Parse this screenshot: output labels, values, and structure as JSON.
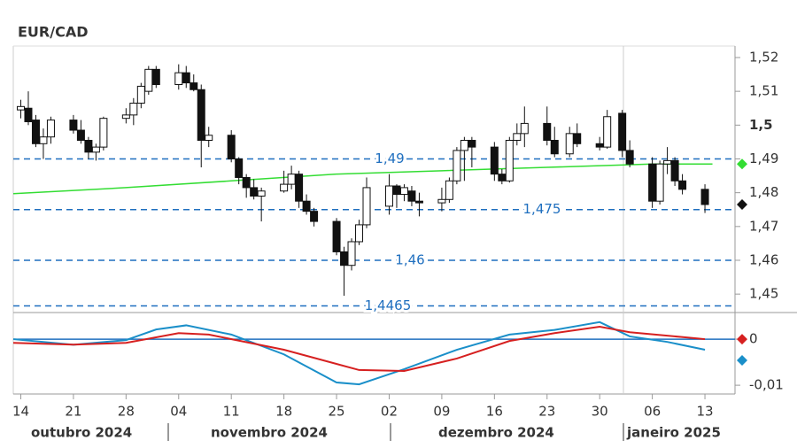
{
  "chart_data": [
    {
      "type": "candlestick",
      "title": "EUR/CAD",
      "x": [
        "2024-10-14",
        "2024-10-15",
        "2024-10-16",
        "2024-10-17",
        "2024-10-18",
        "2024-10-21",
        "2024-10-22",
        "2024-10-23",
        "2024-10-24",
        "2024-10-25",
        "2024-10-28",
        "2024-10-29",
        "2024-10-30",
        "2024-10-31",
        "2024-11-01",
        "2024-11-04",
        "2024-11-05",
        "2024-11-06",
        "2024-11-07",
        "2024-11-08",
        "2024-11-11",
        "2024-11-12",
        "2024-11-13",
        "2024-11-14",
        "2024-11-15",
        "2024-11-18",
        "2024-11-19",
        "2024-11-20",
        "2024-11-21",
        "2024-11-22",
        "2024-11-25",
        "2024-11-26",
        "2024-11-27",
        "2024-11-28",
        "2024-11-29",
        "2024-12-02",
        "2024-12-03",
        "2024-12-04",
        "2024-12-05",
        "2024-12-06",
        "2024-12-09",
        "2024-12-10",
        "2024-12-11",
        "2024-12-12",
        "2024-12-13",
        "2024-12-16",
        "2024-12-17",
        "2024-12-18",
        "2024-12-19",
        "2024-12-20",
        "2024-12-23",
        "2024-12-24",
        "2024-12-26",
        "2024-12-27",
        "2024-12-30",
        "2024-12-31",
        "2025-01-02",
        "2025-01-03",
        "2025-01-06",
        "2025-01-07",
        "2025-01-08",
        "2025-01-09",
        "2025-01-10",
        "2025-01-13"
      ],
      "open": [
        1.5045,
        1.505,
        1.5015,
        1.4945,
        1.4965,
        1.5015,
        1.4985,
        1.4955,
        1.492,
        1.4935,
        1.502,
        1.503,
        1.5065,
        1.51,
        1.5165,
        1.512,
        1.5155,
        1.5125,
        1.5105,
        1.4955,
        1.497,
        1.49,
        1.4845,
        1.4815,
        1.479,
        1.4805,
        1.4825,
        1.4855,
        1.4775,
        1.4745,
        1.4715,
        1.4625,
        1.4585,
        1.4655,
        1.4705,
        1.476,
        1.482,
        1.4795,
        1.4805,
        1.4775,
        1.477,
        1.478,
        1.4835,
        1.4925,
        1.4955,
        1.4935,
        1.4855,
        1.4835,
        1.4955,
        1.4975,
        1.5005,
        1.4955,
        1.4915,
        1.4975,
        1.4945,
        1.4935,
        1.5035,
        1.4925,
        1.4885,
        1.4775,
        1.4885,
        1.4895,
        1.4835,
        1.481
      ],
      "high": [
        1.5075,
        1.51,
        1.503,
        1.499,
        1.5025,
        1.503,
        1.5015,
        1.4965,
        1.4945,
        1.5025,
        1.505,
        1.508,
        1.5125,
        1.5175,
        1.5175,
        1.518,
        1.5175,
        1.515,
        1.512,
        1.4995,
        1.4985,
        1.4905,
        1.4855,
        1.484,
        1.4815,
        1.4865,
        1.488,
        1.4865,
        1.4795,
        1.4755,
        1.4725,
        1.464,
        1.4665,
        1.472,
        1.4845,
        1.4855,
        1.4825,
        1.4825,
        1.482,
        1.48,
        1.4815,
        1.4845,
        1.4935,
        1.4965,
        1.4965,
        1.495,
        1.487,
        1.4965,
        1.5005,
        1.5055,
        1.5055,
        1.4995,
        1.4995,
        1.5005,
        1.4965,
        1.5045,
        1.5045,
        1.4955,
        1.4905,
        1.4895,
        1.4935,
        1.4905,
        1.4855,
        1.4825
      ],
      "low": [
        1.502,
        1.5,
        1.4935,
        1.49,
        1.4945,
        1.4975,
        1.4945,
        1.49,
        1.4895,
        1.4925,
        1.5005,
        1.5,
        1.505,
        1.509,
        1.511,
        1.5105,
        1.511,
        1.51,
        1.4875,
        1.4935,
        1.489,
        1.4825,
        1.4785,
        1.478,
        1.4715,
        1.48,
        1.481,
        1.4755,
        1.4735,
        1.47,
        1.4615,
        1.4495,
        1.457,
        1.4645,
        1.4695,
        1.4735,
        1.4755,
        1.4775,
        1.476,
        1.473,
        1.4745,
        1.477,
        1.4825,
        1.4835,
        1.4875,
        1.4835,
        1.4825,
        1.483,
        1.494,
        1.4935,
        1.494,
        1.4905,
        1.4905,
        1.4935,
        1.4925,
        1.493,
        1.4905,
        1.4875,
        1.4755,
        1.4765,
        1.4855,
        1.482,
        1.4795,
        1.474
      ],
      "close": [
        1.5055,
        1.501,
        1.4945,
        1.4965,
        1.5015,
        1.4985,
        1.4955,
        1.492,
        1.4935,
        1.502,
        1.503,
        1.5065,
        1.5115,
        1.5165,
        1.512,
        1.5155,
        1.5125,
        1.5105,
        1.4955,
        1.497,
        1.49,
        1.4845,
        1.4815,
        1.479,
        1.4805,
        1.4825,
        1.4855,
        1.4775,
        1.4745,
        1.4715,
        1.4625,
        1.4585,
        1.4655,
        1.4705,
        1.4815,
        1.482,
        1.4795,
        1.4815,
        1.4775,
        1.477,
        1.478,
        1.4835,
        1.4925,
        1.4955,
        1.4935,
        1.4855,
        1.4835,
        1.4955,
        1.4975,
        1.5005,
        1.4955,
        1.4915,
        1.4975,
        1.4945,
        1.4935,
        1.5025,
        1.4925,
        1.4885,
        1.4775,
        1.4885,
        1.4895,
        1.4835,
        1.481,
        1.4765
      ],
      "up_color": "#ffffff",
      "down_color": "#111111",
      "moving_average": {
        "color": "#33dd33",
        "x": [
          "2024-10-13",
          "2024-10-28",
          "2024-11-11",
          "2024-11-25",
          "2024-12-09",
          "2024-12-23",
          "2025-01-06",
          "2025-01-14"
        ],
        "values": [
          1.4797,
          1.4815,
          1.4835,
          1.4855,
          1.4865,
          1.4875,
          1.4885,
          1.4885
        ]
      },
      "levels": [
        {
          "value": 1.49,
          "label": "1,49"
        },
        {
          "value": 1.475,
          "label": "1,475"
        },
        {
          "value": 1.46,
          "label": "1,46"
        },
        {
          "value": 1.4465,
          "label": "1,4465"
        }
      ],
      "level_color": "#1f6fbf",
      "xlim": [
        "2024-10-13",
        "2025-01-17"
      ],
      "ylim": [
        1.4448,
        1.5234
      ],
      "yticks": [
        {
          "value": 1.45,
          "label": "1,45"
        },
        {
          "value": 1.46,
          "label": "1,46"
        },
        {
          "value": 1.47,
          "label": "1,47"
        },
        {
          "value": 1.48,
          "label": "1,48"
        },
        {
          "value": 1.49,
          "label": "1,49"
        },
        {
          "value": 1.5,
          "label": "1,5"
        },
        {
          "value": 1.51,
          "label": "1,51"
        },
        {
          "value": 1.52,
          "label": "1,52"
        }
      ]
    },
    {
      "type": "line",
      "series": [
        {
          "color": "#1a8fc9",
          "x": [
            "2024-10-13",
            "2024-10-21",
            "2024-10-28",
            "2024-11-01",
            "2024-11-05",
            "2024-11-11",
            "2024-11-18",
            "2024-11-25",
            "2024-11-28",
            "2024-12-04",
            "2024-12-11",
            "2024-12-18",
            "2024-12-24",
            "2024-12-30",
            "2025-01-03",
            "2025-01-08",
            "2025-01-13"
          ],
          "values": [
            0,
            -0.0012,
            -0.0002,
            0.0021,
            0.003,
            0.001,
            -0.0033,
            -0.0094,
            -0.0098,
            -0.0065,
            -0.0023,
            0.001,
            0.002,
            0.0037,
            0.0006,
            -0.0006,
            -0.0023
          ]
        },
        {
          "color": "#d62020",
          "x": [
            "2024-10-13",
            "2024-10-21",
            "2024-10-28",
            "2024-11-04",
            "2024-11-08",
            "2024-11-18",
            "2024-11-28",
            "2024-12-04",
            "2024-12-11",
            "2024-12-18",
            "2024-12-24",
            "2024-12-30",
            "2025-01-03",
            "2025-01-13"
          ],
          "values": [
            -0.0008,
            -0.0012,
            -0.0008,
            0.0013,
            0.001,
            -0.0023,
            -0.0067,
            -0.0069,
            -0.0042,
            -0.0004,
            0.0013,
            0.0027,
            0.0015,
            0
          ]
        }
      ],
      "zero_color": "#1f6fbf",
      "xlim": [
        "2024-10-13",
        "2025-01-17"
      ],
      "ylim": [
        -0.0119,
        0.0052
      ],
      "yticks": [
        0,
        {
          "value": -0.01,
          "label": "-0,01"
        }
      ],
      "xticks": [
        {
          "value": "2024-10-14",
          "label": "14"
        },
        {
          "value": "2024-10-21",
          "label": "21"
        },
        {
          "value": "2024-10-28",
          "label": "28"
        },
        {
          "value": "2024-11-04",
          "label": "04"
        },
        {
          "value": "2024-11-11",
          "label": "11"
        },
        {
          "value": "2024-11-18",
          "label": "18"
        },
        {
          "value": "2024-11-25",
          "label": "25"
        },
        {
          "value": "2024-12-02",
          "label": "02"
        },
        {
          "value": "2024-12-09",
          "label": "09"
        },
        {
          "value": "2024-12-16",
          "label": "16"
        },
        {
          "value": "2024-12-23",
          "label": "23"
        },
        {
          "value": "2024-12-30",
          "label": "30"
        },
        {
          "value": "2025-01-06",
          "label": "06"
        },
        {
          "value": "2025-01-13",
          "label": "13"
        }
      ],
      "months": [
        "outubro 2024",
        "novembro 2024",
        "dezembro 2024",
        "janeiro 2025"
      ]
    }
  ]
}
